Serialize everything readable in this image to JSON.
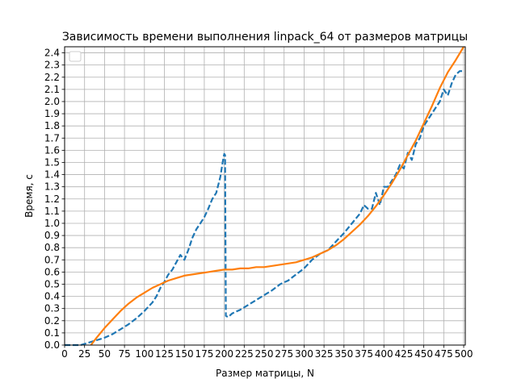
{
  "chart_data": {
    "type": "line",
    "title": "Зависимость времени выполнения linpack_64 от размеров матрицы",
    "xlabel": "Размер матрицы, N",
    "ylabel": "Время, с",
    "xlim": [
      0,
      502
    ],
    "ylim": [
      0.0,
      2.45
    ],
    "xticks": [
      0,
      25,
      50,
      75,
      100,
      125,
      150,
      175,
      200,
      225,
      250,
      275,
      300,
      325,
      350,
      375,
      400,
      425,
      450,
      475,
      500
    ],
    "yticks": [
      "0.0",
      "0.1",
      "0.2",
      "0.3",
      "0.4",
      "0.5",
      "0.6",
      "0.7",
      "0.8",
      "0.9",
      "1.0",
      "1.1",
      "1.2",
      "1.3",
      "1.4",
      "1.5",
      "1.6",
      "1.7",
      "1.8",
      "1.9",
      "2.0",
      "2.1",
      "2.2",
      "2.3",
      "2.4"
    ],
    "grid": true,
    "legend": "top-left, empty",
    "series": [
      {
        "style": "dashed",
        "color": "#1f77b4",
        "x": [
          0,
          10,
          20,
          25,
          30,
          40,
          50,
          60,
          70,
          80,
          90,
          100,
          110,
          115,
          120,
          125,
          130,
          135,
          140,
          145,
          150,
          155,
          160,
          165,
          170,
          175,
          180,
          185,
          190,
          195,
          198,
          200,
          201,
          202,
          205,
          210,
          220,
          230,
          240,
          250,
          260,
          270,
          280,
          290,
          300,
          310,
          320,
          330,
          340,
          350,
          360,
          370,
          375,
          380,
          385,
          390,
          395,
          400,
          405,
          410,
          415,
          420,
          425,
          430,
          435,
          440,
          445,
          450,
          455,
          460,
          465,
          470,
          475,
          480,
          485,
          490,
          495,
          500
        ],
        "y": [
          0.0,
          0.0,
          0.0,
          0.01,
          0.02,
          0.04,
          0.06,
          0.09,
          0.13,
          0.17,
          0.22,
          0.28,
          0.35,
          0.4,
          0.47,
          0.52,
          0.58,
          0.62,
          0.68,
          0.74,
          0.7,
          0.78,
          0.88,
          0.95,
          1.0,
          1.05,
          1.12,
          1.2,
          1.25,
          1.38,
          1.5,
          1.57,
          1.56,
          0.24,
          0.23,
          0.26,
          0.29,
          0.33,
          0.37,
          0.41,
          0.45,
          0.5,
          0.53,
          0.58,
          0.63,
          0.7,
          0.75,
          0.78,
          0.85,
          0.92,
          1.0,
          1.08,
          1.15,
          1.12,
          1.12,
          1.25,
          1.15,
          1.3,
          1.3,
          1.35,
          1.4,
          1.48,
          1.45,
          1.58,
          1.52,
          1.65,
          1.7,
          1.8,
          1.85,
          1.9,
          1.95,
          2.0,
          2.1,
          2.05,
          2.15,
          2.22,
          2.25,
          2.25
        ]
      },
      {
        "style": "solid",
        "color": "#ff7f0e",
        "x": [
          33,
          40,
          50,
          60,
          70,
          80,
          90,
          100,
          110,
          120,
          130,
          140,
          150,
          160,
          170,
          180,
          190,
          200,
          210,
          220,
          230,
          240,
          250,
          260,
          270,
          280,
          290,
          300,
          310,
          320,
          330,
          340,
          350,
          360,
          370,
          380,
          390,
          400,
          410,
          420,
          430,
          440,
          450,
          460,
          470,
          480,
          490,
          500
        ],
        "y": [
          0.0,
          0.06,
          0.14,
          0.21,
          0.28,
          0.34,
          0.39,
          0.43,
          0.47,
          0.5,
          0.53,
          0.55,
          0.57,
          0.58,
          0.59,
          0.6,
          0.61,
          0.62,
          0.62,
          0.63,
          0.63,
          0.64,
          0.64,
          0.65,
          0.66,
          0.67,
          0.68,
          0.7,
          0.72,
          0.75,
          0.78,
          0.82,
          0.87,
          0.93,
          0.99,
          1.06,
          1.14,
          1.23,
          1.33,
          1.44,
          1.56,
          1.68,
          1.82,
          1.96,
          2.11,
          2.24,
          2.34,
          2.45
        ]
      }
    ]
  }
}
